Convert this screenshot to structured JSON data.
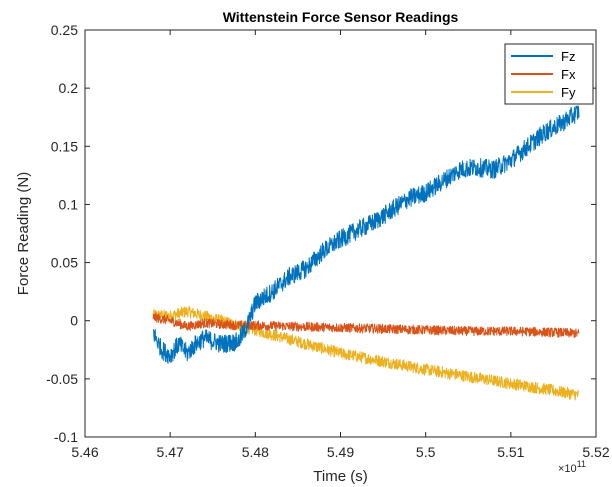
{
  "chart_data": {
    "type": "line",
    "title": "Wittenstein Force Sensor Readings",
    "xlabel": "Time (s)",
    "ylabel": "Force Reading (N)",
    "x_multiplier_label": "×10",
    "x_multiplier_exp": "11",
    "xlim": [
      5.46,
      5.52
    ],
    "ylim": [
      -0.1,
      0.25
    ],
    "xticks": [
      "5.46",
      "5.47",
      "5.48",
      "5.49",
      "5.5",
      "5.51",
      "5.52"
    ],
    "yticks": [
      "-0.1",
      "-0.05",
      "0",
      "0.05",
      "0.1",
      "0.15",
      "0.2",
      "0.25"
    ],
    "legend_position": "top-right",
    "grid": false,
    "series": [
      {
        "name": "Fz",
        "color": "#0072BD",
        "noise": 0.008,
        "x": [
          5.468,
          5.469,
          5.47,
          5.471,
          5.472,
          5.473,
          5.474,
          5.476,
          5.478,
          5.479,
          5.48,
          5.482,
          5.484,
          5.486,
          5.488,
          5.49,
          5.492,
          5.494,
          5.496,
          5.498,
          5.5,
          5.502,
          5.504,
          5.506,
          5.508,
          5.51,
          5.512,
          5.514,
          5.516,
          5.518
        ],
        "y": [
          -0.01,
          -0.025,
          -0.03,
          -0.02,
          -0.028,
          -0.02,
          -0.015,
          -0.02,
          -0.018,
          -0.005,
          0.015,
          0.025,
          0.038,
          0.045,
          0.06,
          0.07,
          0.078,
          0.085,
          0.095,
          0.105,
          0.11,
          0.12,
          0.13,
          0.132,
          0.13,
          0.138,
          0.15,
          0.162,
          0.17,
          0.18
        ]
      },
      {
        "name": "Fx",
        "color": "#D95319",
        "noise": 0.004,
        "x": [
          5.468,
          5.47,
          5.472,
          5.474,
          5.476,
          5.478,
          5.48,
          5.485,
          5.49,
          5.495,
          5.5,
          5.505,
          5.51,
          5.515,
          5.518
        ],
        "y": [
          0.003,
          0.0,
          -0.005,
          -0.002,
          -0.003,
          -0.004,
          -0.004,
          -0.005,
          -0.006,
          -0.007,
          -0.008,
          -0.009,
          -0.009,
          -0.01,
          -0.011
        ]
      },
      {
        "name": "Fy",
        "color": "#EDB120",
        "noise": 0.005,
        "x": [
          5.468,
          5.47,
          5.472,
          5.474,
          5.476,
          5.478,
          5.48,
          5.485,
          5.49,
          5.495,
          5.5,
          5.505,
          5.51,
          5.515,
          5.518
        ],
        "y": [
          0.005,
          0.004,
          0.008,
          0.004,
          0.0,
          -0.004,
          -0.008,
          -0.018,
          -0.028,
          -0.035,
          -0.042,
          -0.048,
          -0.054,
          -0.06,
          -0.064
        ]
      }
    ]
  }
}
